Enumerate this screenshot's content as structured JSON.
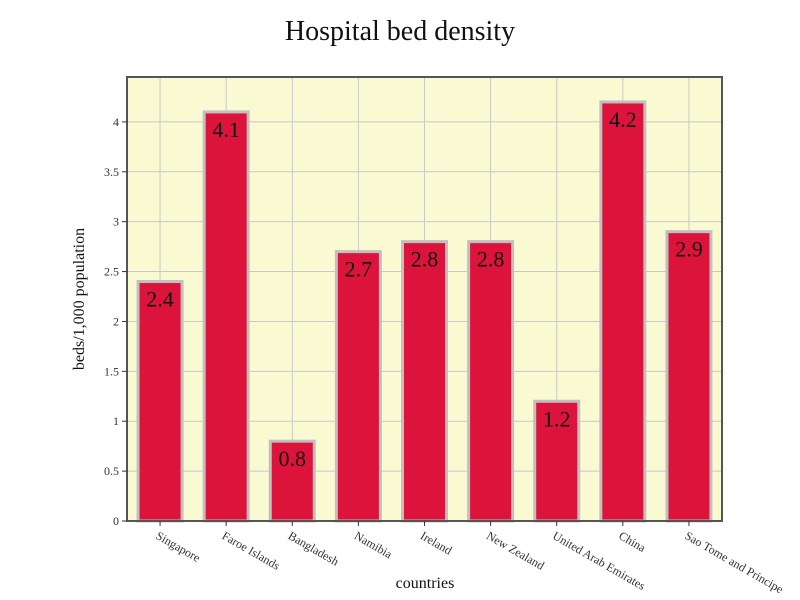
{
  "chart_data": {
    "type": "bar",
    "title": "Hospital bed density",
    "xlabel": "countries",
    "ylabel": "beds/1,000 population",
    "categories": [
      "Singapore",
      "Faroe Islands",
      "Bangladesh",
      "Namibia",
      "Ireland",
      "New Zealand",
      "United Arab Emirates",
      "China",
      "Sao Tome and Principe"
    ],
    "values": [
      2.4,
      4.1,
      0.8,
      2.7,
      2.8,
      2.8,
      1.2,
      4.2,
      2.9
    ],
    "data_labels": [
      "2.4",
      "4.1",
      "0.8",
      "2.7",
      "2.8",
      "2.8",
      "1.2",
      "4.2",
      "2.9"
    ],
    "y_ticks": [
      0,
      0.5,
      1,
      1.5,
      2,
      2.5,
      3,
      3.5,
      4
    ],
    "y_tick_labels": [
      "0",
      "0.5",
      "1",
      "1.5",
      "2",
      "2.5",
      "3",
      "3.5",
      "4"
    ],
    "ylim": [
      0,
      4.45
    ],
    "grid": true,
    "legend": "none",
    "colors": {
      "bar_fill": "#dc143c",
      "bar_stroke": "#c0c0c0",
      "plot_background": "#fafad2",
      "grid": "#c8c8c8",
      "axis": "#555555"
    }
  }
}
